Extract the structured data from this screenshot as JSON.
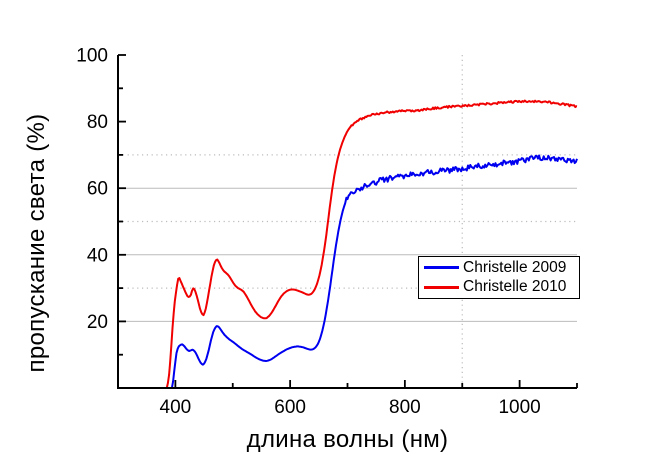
{
  "chart_data": {
    "type": "line",
    "title": "",
    "xlabel": "длина волны (нм)",
    "ylabel": "пропускание света (%)",
    "xlim": [
      300,
      1100
    ],
    "ylim": [
      0,
      100
    ],
    "x_ticks_major": [
      400,
      600,
      800,
      1000
    ],
    "x_ticks_minor": [
      500,
      700,
      900,
      1100
    ],
    "y_ticks_major": [
      20,
      40,
      60,
      80,
      100
    ],
    "y_ticks_minor": [
      10,
      30,
      50,
      70,
      90
    ],
    "grid": {
      "h_solid": [
        20,
        40,
        60
      ],
      "h_dotted": [
        30,
        50,
        70
      ],
      "v_dotted": [
        900
      ],
      "color": "#bcbcbc"
    },
    "axis_color": "#000000",
    "legend": {
      "position": "middle-right",
      "entries": [
        {
          "label": "Christelle 2009",
          "color": "#0000f0"
        },
        {
          "label": "Christelle 2010",
          "color": "#f00000"
        }
      ]
    },
    "series": [
      {
        "name": "Christelle 2009",
        "color": "#0000f0",
        "noise": {
          "from_x": 697,
          "amplitude": 0.85
        },
        "points": [
          [
            394,
            0
          ],
          [
            396,
            2
          ],
          [
            398,
            5
          ],
          [
            400,
            8
          ],
          [
            402,
            10.5
          ],
          [
            404,
            11.8
          ],
          [
            406,
            12.5
          ],
          [
            409,
            13
          ],
          [
            412,
            13.1
          ],
          [
            415,
            12.7
          ],
          [
            418,
            12
          ],
          [
            421,
            11.4
          ],
          [
            424,
            11.1
          ],
          [
            427,
            11.3
          ],
          [
            430,
            11.5
          ],
          [
            433,
            11.2
          ],
          [
            436,
            10.4
          ],
          [
            439,
            9.3
          ],
          [
            442,
            8.2
          ],
          [
            445,
            7.3
          ],
          [
            448,
            7
          ],
          [
            451,
            7.5
          ],
          [
            454,
            8.8
          ],
          [
            457,
            10.6
          ],
          [
            460,
            12.8
          ],
          [
            463,
            15
          ],
          [
            466,
            16.8
          ],
          [
            469,
            18
          ],
          [
            472,
            18.6
          ],
          [
            475,
            18.5
          ],
          [
            478,
            17.8
          ],
          [
            482,
            16.8
          ],
          [
            486,
            15.9
          ],
          [
            490,
            15.2
          ],
          [
            494,
            14.6
          ],
          [
            498,
            14.1
          ],
          [
            503,
            13.5
          ],
          [
            508,
            12.8
          ],
          [
            513,
            12.1
          ],
          [
            518,
            11.5
          ],
          [
            523,
            11
          ],
          [
            528,
            10.5
          ],
          [
            533,
            10
          ],
          [
            538,
            9.4
          ],
          [
            543,
            8.9
          ],
          [
            548,
            8.5
          ],
          [
            553,
            8.2
          ],
          [
            558,
            8.1
          ],
          [
            563,
            8.3
          ],
          [
            568,
            8.7
          ],
          [
            573,
            9.3
          ],
          [
            578,
            9.9
          ],
          [
            583,
            10.5
          ],
          [
            588,
            11
          ],
          [
            593,
            11.5
          ],
          [
            598,
            11.9
          ],
          [
            603,
            12.2
          ],
          [
            608,
            12.4
          ],
          [
            613,
            12.5
          ],
          [
            618,
            12.4
          ],
          [
            623,
            12.2
          ],
          [
            628,
            11.9
          ],
          [
            633,
            11.6
          ],
          [
            637,
            11.5
          ],
          [
            641,
            11.7
          ],
          [
            645,
            12.3
          ],
          [
            649,
            13.4
          ],
          [
            653,
            15.2
          ],
          [
            657,
            17.8
          ],
          [
            661,
            21
          ],
          [
            665,
            25
          ],
          [
            669,
            29.5
          ],
          [
            673,
            34.5
          ],
          [
            677,
            39.5
          ],
          [
            681,
            44
          ],
          [
            685,
            48
          ],
          [
            689,
            51.3
          ],
          [
            693,
            54
          ],
          [
            697,
            56
          ],
          [
            701,
            57.3
          ],
          [
            706,
            58.2
          ],
          [
            711,
            58.9
          ],
          [
            717,
            59.5
          ],
          [
            723,
            60
          ],
          [
            730,
            60.5
          ],
          [
            738,
            61.1
          ],
          [
            747,
            61.7
          ],
          [
            757,
            62.2
          ],
          [
            768,
            62.7
          ],
          [
            780,
            63.2
          ],
          [
            792,
            63.6
          ],
          [
            805,
            64
          ],
          [
            820,
            64.3
          ],
          [
            835,
            64.6
          ],
          [
            850,
            64.9
          ],
          [
            865,
            65.2
          ],
          [
            880,
            65.5
          ],
          [
            895,
            65.8
          ],
          [
            910,
            66.1
          ],
          [
            925,
            66.5
          ],
          [
            940,
            66.8
          ],
          [
            955,
            67.2
          ],
          [
            970,
            67.5
          ],
          [
            985,
            67.9
          ],
          [
            1000,
            68.2
          ],
          [
            1015,
            68.6
          ],
          [
            1030,
            69
          ],
          [
            1042,
            69.2
          ],
          [
            1055,
            69.1
          ],
          [
            1068,
            68.8
          ],
          [
            1080,
            68.5
          ],
          [
            1090,
            68.2
          ],
          [
            1100,
            68
          ]
        ]
      },
      {
        "name": "Christelle 2010",
        "color": "#f00000",
        "noise": {
          "from_x": 707,
          "amplitude": 0.3
        },
        "points": [
          [
            385,
            0
          ],
          [
            387,
            1.5
          ],
          [
            389,
            4
          ],
          [
            391,
            8
          ],
          [
            393,
            13
          ],
          [
            395,
            18
          ],
          [
            397,
            22.5
          ],
          [
            399,
            26
          ],
          [
            401,
            28.5
          ],
          [
            403,
            31
          ],
          [
            405,
            32.8
          ],
          [
            407,
            33
          ],
          [
            409,
            32.2
          ],
          [
            412,
            31
          ],
          [
            415,
            29.8
          ],
          [
            418,
            28.6
          ],
          [
            421,
            27.6
          ],
          [
            424,
            27.2
          ],
          [
            427,
            28
          ],
          [
            430,
            29.8
          ],
          [
            432,
            30
          ],
          [
            434,
            29.4
          ],
          [
            437,
            27.8
          ],
          [
            440,
            25.8
          ],
          [
            443,
            23.8
          ],
          [
            446,
            22.3
          ],
          [
            449,
            21.9
          ],
          [
            452,
            23
          ],
          [
            455,
            25.5
          ],
          [
            458,
            28.5
          ],
          [
            461,
            31.5
          ],
          [
            464,
            34.5
          ],
          [
            467,
            36.8
          ],
          [
            470,
            38.3
          ],
          [
            473,
            38.6
          ],
          [
            476,
            37.8
          ],
          [
            480,
            36.3
          ],
          [
            484,
            35.2
          ],
          [
            488,
            34.6
          ],
          [
            492,
            34
          ],
          [
            496,
            33
          ],
          [
            500,
            31.8
          ],
          [
            504,
            30.8
          ],
          [
            509,
            30
          ],
          [
            514,
            29.6
          ],
          [
            519,
            28.9
          ],
          [
            524,
            27.6
          ],
          [
            529,
            26
          ],
          [
            534,
            24.4
          ],
          [
            539,
            23
          ],
          [
            544,
            22
          ],
          [
            549,
            21.3
          ],
          [
            554,
            20.9
          ],
          [
            559,
            21
          ],
          [
            564,
            21.7
          ],
          [
            569,
            22.9
          ],
          [
            574,
            24.4
          ],
          [
            579,
            26
          ],
          [
            584,
            27.4
          ],
          [
            589,
            28.4
          ],
          [
            594,
            29.1
          ],
          [
            599,
            29.5
          ],
          [
            604,
            29.6
          ],
          [
            609,
            29.5
          ],
          [
            614,
            29.2
          ],
          [
            619,
            28.9
          ],
          [
            624,
            28.5
          ],
          [
            629,
            28.1
          ],
          [
            634,
            28
          ],
          [
            638,
            28.4
          ],
          [
            642,
            29.3
          ],
          [
            646,
            30.8
          ],
          [
            650,
            33
          ],
          [
            654,
            36
          ],
          [
            658,
            40
          ],
          [
            662,
            44.5
          ],
          [
            666,
            50
          ],
          [
            670,
            55.5
          ],
          [
            674,
            60.5
          ],
          [
            678,
            64.8
          ],
          [
            682,
            68.2
          ],
          [
            686,
            71
          ],
          [
            690,
            73.2
          ],
          [
            695,
            75.4
          ],
          [
            700,
            77.2
          ],
          [
            705,
            78.4
          ],
          [
            710,
            79.3
          ],
          [
            716,
            80.1
          ],
          [
            722,
            80.7
          ],
          [
            730,
            81.3
          ],
          [
            740,
            81.9
          ],
          [
            750,
            82.3
          ],
          [
            762,
            82.6
          ],
          [
            775,
            82.9
          ],
          [
            790,
            83.1
          ],
          [
            805,
            83.2
          ],
          [
            820,
            83.3
          ],
          [
            835,
            83.6
          ],
          [
            850,
            84
          ],
          [
            865,
            84.3
          ],
          [
            880,
            84.5
          ],
          [
            895,
            84.7
          ],
          [
            910,
            84.9
          ],
          [
            925,
            85.1
          ],
          [
            940,
            85.3
          ],
          [
            955,
            85.5
          ],
          [
            970,
            85.7
          ],
          [
            985,
            85.9
          ],
          [
            1000,
            86
          ],
          [
            1015,
            86.1
          ],
          [
            1030,
            86.1
          ],
          [
            1045,
            86
          ],
          [
            1060,
            85.6
          ],
          [
            1075,
            85.2
          ],
          [
            1090,
            84.8
          ],
          [
            1100,
            84.5
          ]
        ]
      }
    ]
  }
}
